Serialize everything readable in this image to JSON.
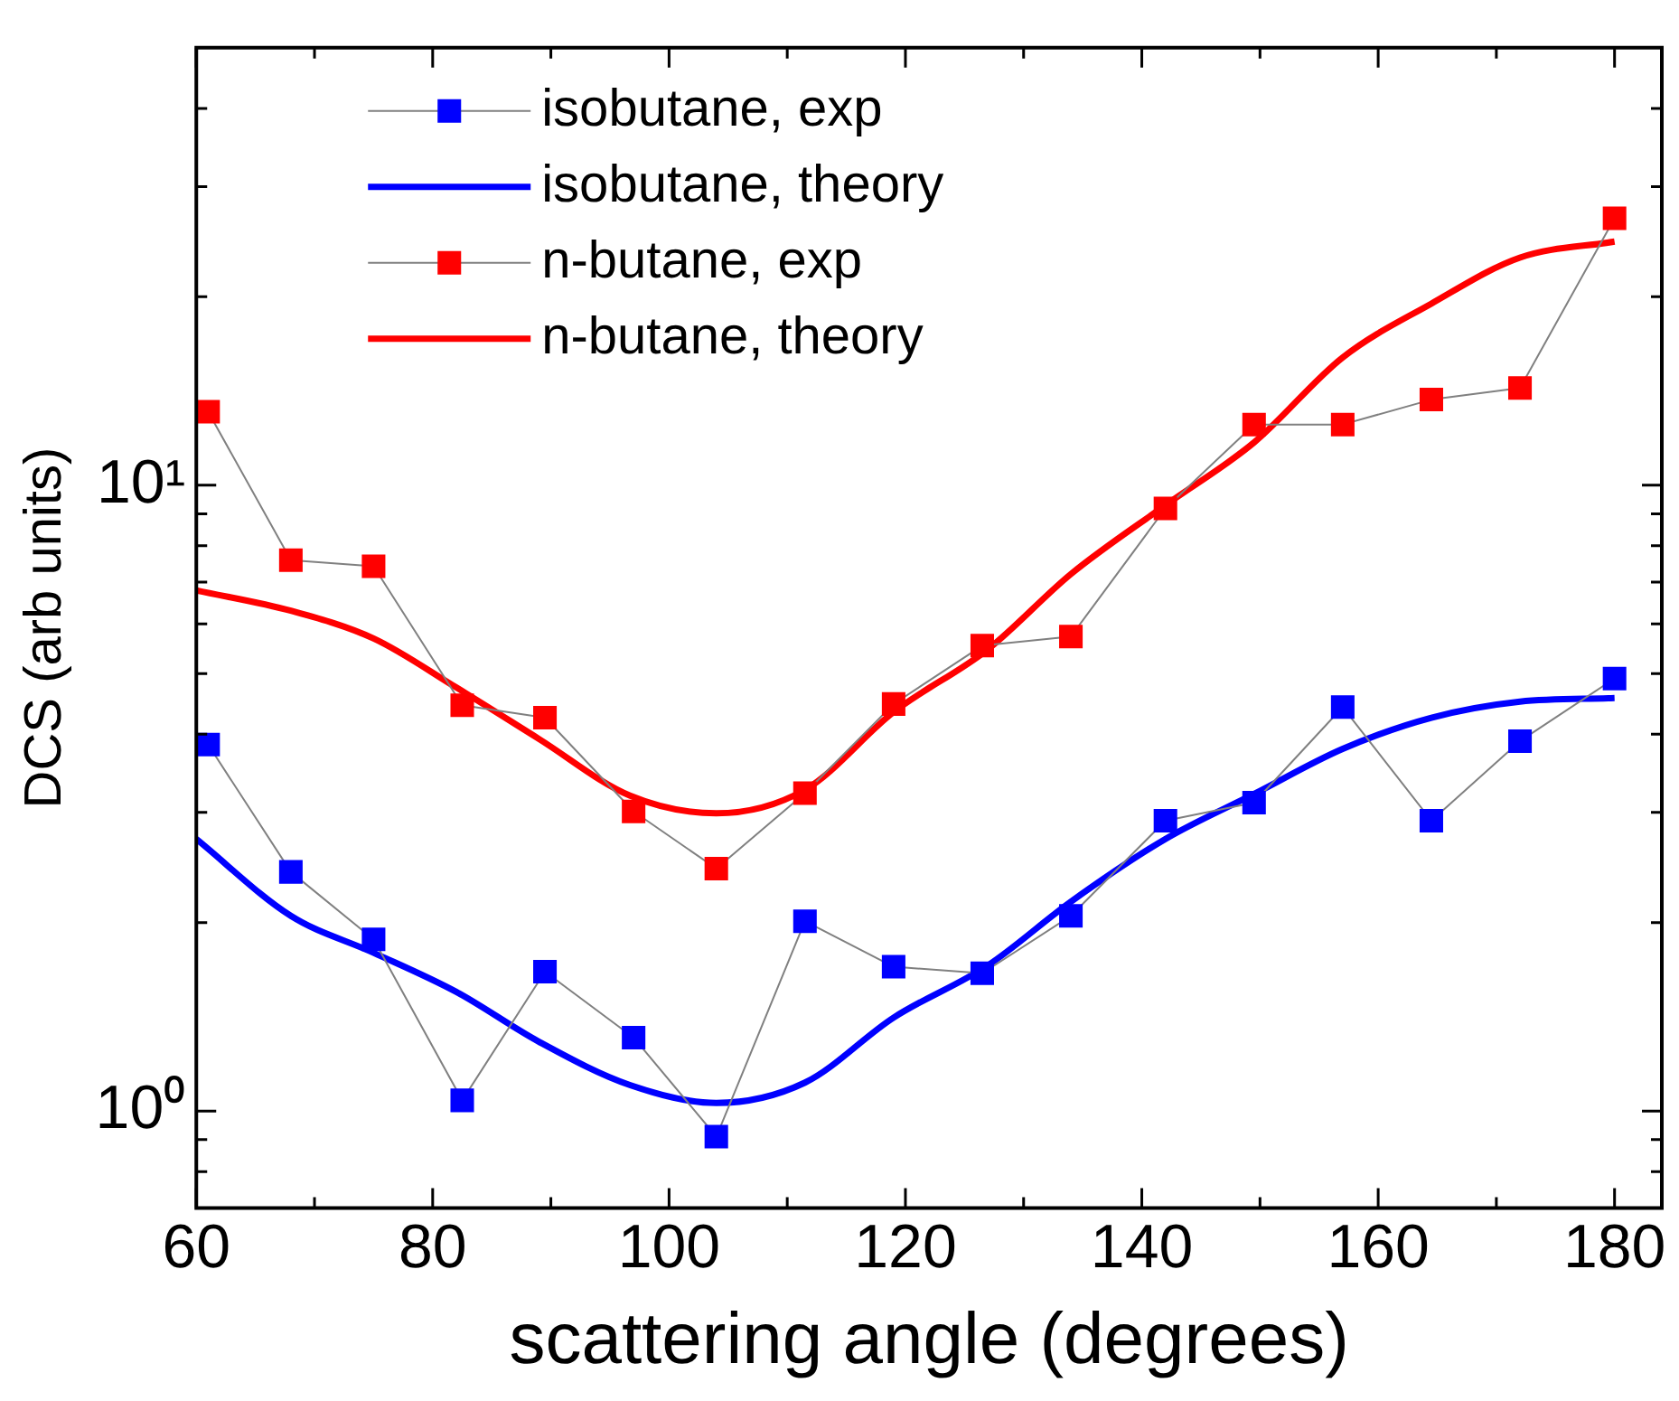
{
  "chart_data": {
    "type": "line",
    "xlabel": "scattering angle (degrees)",
    "ylabel": "DCS (arb units)",
    "log": "y",
    "legend": "top left",
    "line_style": "solid",
    "xlim": [
      60,
      184
    ],
    "xticks": [
      60,
      {
        "value": 70,
        "label": null
      },
      80,
      {
        "value": 90,
        "label": null
      },
      100,
      {
        "value": 110,
        "label": null
      },
      120,
      {
        "value": 130,
        "label": null
      },
      140,
      {
        "value": 150,
        "label": null
      },
      160,
      {
        "value": 170,
        "label": null
      },
      180
    ],
    "ylim": [
      0.7,
      50
    ],
    "yticks": [
      {
        "value": 0.8,
        "label": null
      },
      {
        "value": 0.9,
        "label": null
      },
      {
        "value": 1,
        "label": "10⁰"
      },
      {
        "value": 2,
        "label": null
      },
      {
        "value": 3,
        "label": null
      },
      {
        "value": 4,
        "label": null
      },
      {
        "value": 5,
        "label": null
      },
      {
        "value": 6,
        "label": null
      },
      {
        "value": 7,
        "label": null
      },
      {
        "value": 8,
        "label": null
      },
      {
        "value": 9,
        "label": null
      },
      {
        "value": 10,
        "label": "10¹"
      },
      {
        "value": 20,
        "label": null
      },
      {
        "value": 30,
        "label": null
      },
      {
        "value": 40,
        "label": null
      }
    ],
    "x": [
      61,
      68,
      75,
      82.5,
      89.5,
      97,
      104,
      111.5,
      119,
      126.5,
      134,
      142,
      149.5,
      157,
      164.5,
      172,
      180
    ],
    "series": [
      {
        "name": "isobutane, exp",
        "color": "#0000ff",
        "marker": "square",
        "values": [
          3.85,
          2.41,
          1.88,
          1.04,
          1.67,
          1.31,
          0.91,
          2.01,
          1.7,
          1.66,
          2.05,
          2.91,
          3.11,
          4.42,
          2.91,
          3.9,
          4.91
        ]
      },
      {
        "name": "isobutane, theory",
        "color": "#0000ff",
        "marker": "none",
        "x": [
          60,
          68,
          75,
          82,
          89,
          96.7,
          104,
          111.5,
          119,
          127,
          134,
          142,
          149.5,
          157,
          164.5,
          172,
          180
        ],
        "values": [
          2.72,
          2.05,
          1.79,
          1.55,
          1.29,
          1.1,
          1.03,
          1.11,
          1.41,
          1.71,
          2.16,
          2.72,
          3.21,
          3.79,
          4.25,
          4.51,
          4.57
        ]
      },
      {
        "name": "n-butane, exp",
        "color": "#ff0000",
        "marker": "square",
        "values": [
          13.1,
          7.59,
          7.42,
          4.45,
          4.25,
          3.01,
          2.44,
          3.22,
          4.47,
          5.54,
          5.73,
          9.18,
          12.5,
          12.5,
          13.7,
          14.3,
          26.7
        ]
      },
      {
        "name": "n-butane, theory",
        "color": "#ff0000",
        "marker": "none",
        "x": [
          60,
          68,
          75,
          82,
          89,
          96.7,
          104,
          111.5,
          119,
          127,
          134,
          142,
          149.5,
          157,
          164.5,
          172,
          180
        ],
        "values": [
          6.79,
          6.3,
          5.69,
          4.75,
          3.93,
          3.19,
          2.99,
          3.26,
          4.34,
          5.47,
          7.21,
          9.29,
          11.7,
          16,
          19.5,
          23.1,
          24.5
        ]
      }
    ]
  }
}
